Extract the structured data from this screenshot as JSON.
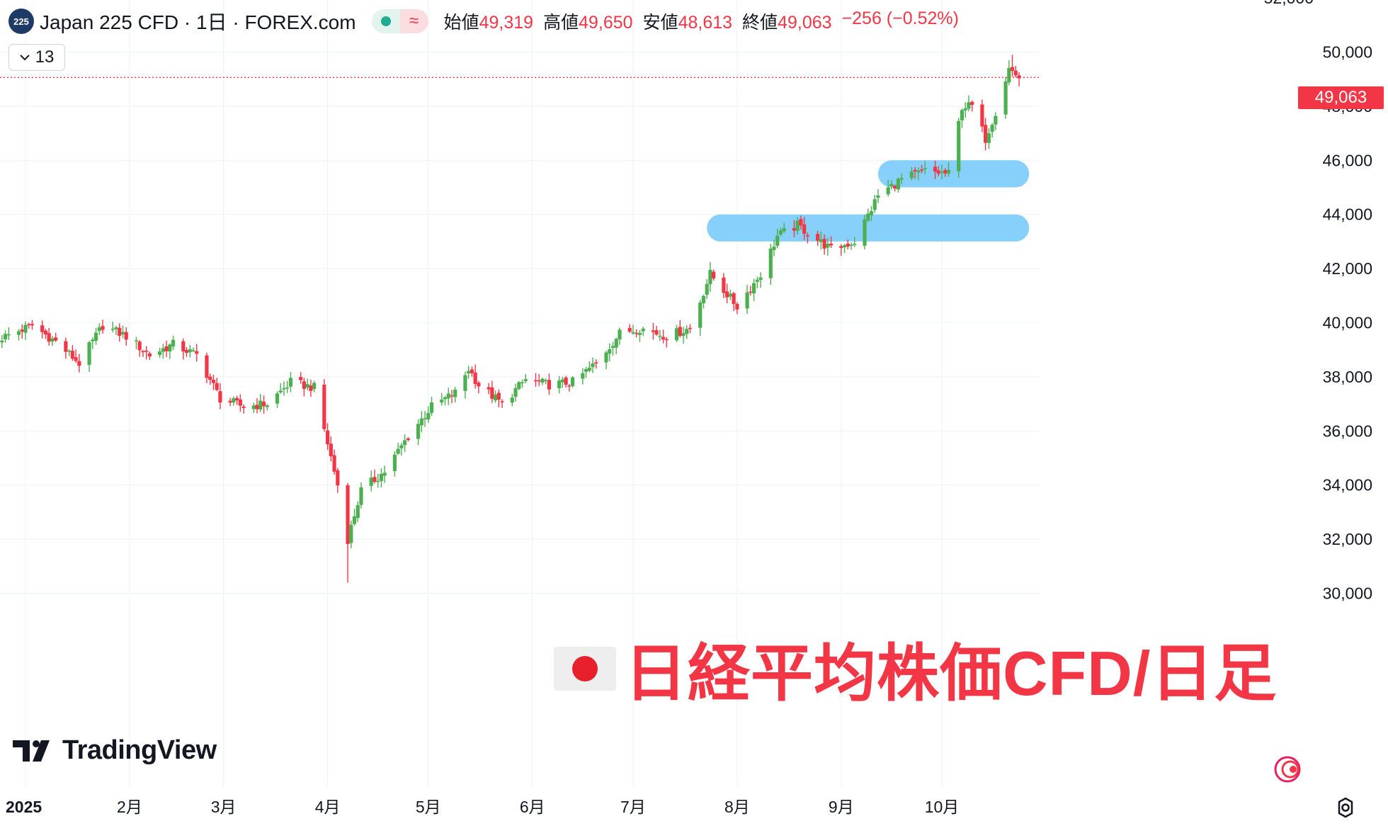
{
  "header": {
    "symbol_logo": "225",
    "title": "Japan 225 CFD · 1日 · FOREX.com",
    "status_icons": [
      "market-open-dot-icon",
      "delayed-data-icon"
    ],
    "delayed_glyph": "≈",
    "ohlc": {
      "open_label": "始値",
      "open": "49,319",
      "high_label": "高値",
      "high": "49,650",
      "low_label": "安値",
      "low": "48,613",
      "close_label": "終値",
      "close": "49,063",
      "change": "−256 (−0.52%)"
    }
  },
  "collapse_button": {
    "count": "13"
  },
  "price_tag": "49,063",
  "watermark": "TradingView",
  "overlay": {
    "title": "日経平均株価CFD/日足"
  },
  "colors": {
    "up": "#4caf50",
    "down": "#f23645",
    "zone": "#81cdfb",
    "grid": "#f0f3fa",
    "price_line": "#f23645"
  },
  "chart_data": {
    "type": "candlestick",
    "instrument": "Japan 225 CFD",
    "ylim": [
      28800,
      52000
    ],
    "yticks": [
      30000,
      32000,
      34000,
      36000,
      38000,
      40000,
      42000,
      44000,
      46000,
      48000,
      50000
    ],
    "ytick_labels": [
      "30,000",
      "32,000",
      "34,000",
      "36,000",
      "38,000",
      "40,000",
      "42,000",
      "44,000",
      "46,000",
      "48,000",
      "50,000"
    ],
    "xticks": [
      {
        "label": "2025",
        "date": "2025-01-01",
        "bold": true
      },
      {
        "label": "2月",
        "date": "2025-02-01"
      },
      {
        "label": "3月",
        "date": "2025-03-01"
      },
      {
        "label": "4月",
        "date": "2025-04-01"
      },
      {
        "label": "5月",
        "date": "2025-05-01"
      },
      {
        "label": "6月",
        "date": "2025-06-01"
      },
      {
        "label": "7月",
        "date": "2025-07-01"
      },
      {
        "label": "8月",
        "date": "2025-08-01"
      },
      {
        "label": "9月",
        "date": "2025-09-01"
      },
      {
        "label": "10月",
        "date": "2025-10-01"
      }
    ],
    "current_price": 49063,
    "zones": [
      {
        "date_from": "2025-07-23",
        "date_to": "2025-10-27",
        "low": 43000,
        "high": 44000
      },
      {
        "date_from": "2025-09-12",
        "date_to": "2025-10-27",
        "low": 45000,
        "high": 46000
      }
    ],
    "closes": [
      [
        "2024-12-25",
        39450
      ],
      [
        "2025-01-03",
        39900
      ],
      [
        "2025-01-10",
        39300
      ],
      [
        "2025-01-17",
        38500
      ],
      [
        "2025-01-24",
        39900
      ],
      [
        "2025-01-31",
        39500
      ],
      [
        "2025-02-07",
        38800
      ],
      [
        "2025-02-14",
        39200
      ],
      [
        "2025-02-21",
        38800
      ],
      [
        "2025-02-28",
        37200
      ],
      [
        "2025-03-07",
        36900
      ],
      [
        "2025-03-14",
        37000
      ],
      [
        "2025-03-21",
        37800
      ],
      [
        "2025-03-28",
        37600
      ],
      [
        "2025-04-04",
        34000
      ],
      [
        "2025-04-07",
        32000
      ],
      [
        "2025-04-11",
        33800
      ],
      [
        "2025-04-18",
        34500
      ],
      [
        "2025-04-25",
        35800
      ],
      [
        "2025-05-02",
        36900
      ],
      [
        "2025-05-09",
        37400
      ],
      [
        "2025-05-13",
        38300
      ],
      [
        "2025-05-16",
        37700
      ],
      [
        "2025-05-23",
        37000
      ],
      [
        "2025-05-30",
        37900
      ],
      [
        "2025-06-06",
        37700
      ],
      [
        "2025-06-13",
        37800
      ],
      [
        "2025-06-20",
        38500
      ],
      [
        "2025-06-27",
        39600
      ],
      [
        "2025-07-03",
        39800
      ],
      [
        "2025-07-11",
        39500
      ],
      [
        "2025-07-18",
        39800
      ],
      [
        "2025-07-24",
        41800
      ],
      [
        "2025-08-01",
        40600
      ],
      [
        "2025-08-08",
        41800
      ],
      [
        "2025-08-13",
        43200
      ],
      [
        "2025-08-19",
        43600
      ],
      [
        "2025-08-29",
        42700
      ],
      [
        "2025-09-05",
        43000
      ],
      [
        "2025-09-12",
        44700
      ],
      [
        "2025-09-19",
        45300
      ],
      [
        "2025-09-26",
        45600
      ],
      [
        "2025-10-03",
        45500
      ],
      [
        "2025-10-07",
        48000
      ],
      [
        "2025-10-10",
        48000
      ],
      [
        "2025-10-14",
        46800
      ],
      [
        "2025-10-17",
        47800
      ],
      [
        "2025-10-21",
        49400
      ],
      [
        "2025-10-24",
        49063
      ]
    ],
    "extremes": [
      {
        "date": "2025-04-07",
        "low": 30400
      },
      {
        "date": "2025-10-22",
        "high": 49900
      }
    ]
  }
}
